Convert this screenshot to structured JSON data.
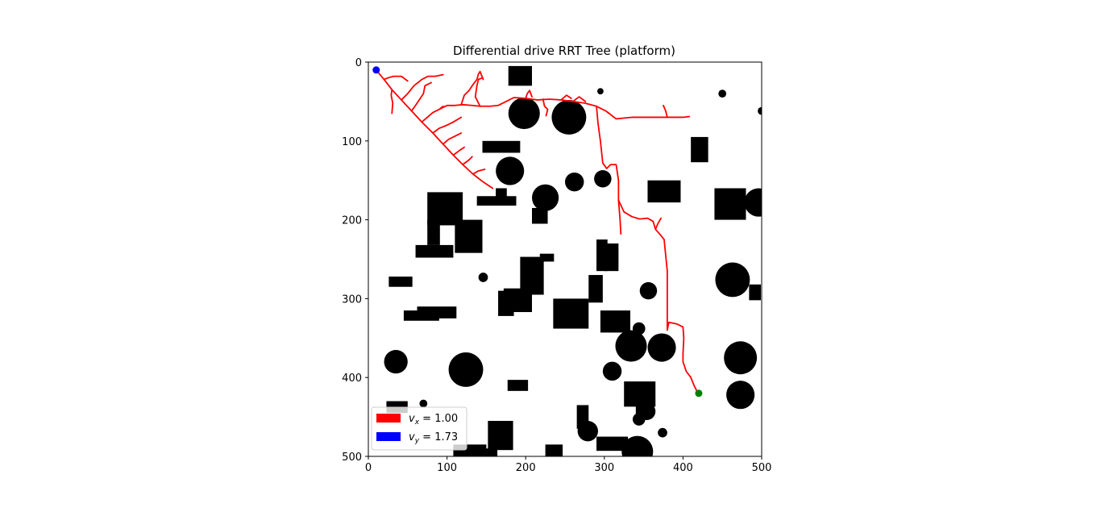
{
  "chart_data": {
    "type": "scatter",
    "title": "Differential drive RRT Tree (platform)",
    "xlabel": "",
    "ylabel": "",
    "xlim": [
      0,
      500
    ],
    "ylim": [
      500,
      0
    ],
    "y_inverted": true,
    "x_ticks": [
      "0",
      "100",
      "200",
      "300",
      "400",
      "500"
    ],
    "y_ticks": [
      "0",
      "100",
      "200",
      "300",
      "400",
      "500"
    ],
    "x_tick_values": [
      0,
      100,
      200,
      300,
      400,
      500
    ],
    "y_tick_values": [
      0,
      100,
      200,
      300,
      400,
      500
    ],
    "grid": false,
    "legend": {
      "placement": "lower-left",
      "entries": [
        {
          "label_var": "v",
          "label_sub": "x",
          "label_rest": " = 1.00",
          "color": "#ff0000"
        },
        {
          "label_var": "v",
          "label_sub": "y",
          "label_rest": " = 1.73",
          "color": "#0000ff"
        }
      ]
    },
    "start": {
      "x": 10,
      "y": 10,
      "color": "#0000ff"
    },
    "goal": {
      "x": 420,
      "y": 420,
      "color": "#008000"
    },
    "tree_color": "#ff0000",
    "obstacle_color": "#000000",
    "obstacles_rect": [
      [
        178,
        5,
        30,
        25
      ],
      [
        145,
        100,
        48,
        15
      ],
      [
        410,
        95,
        22,
        32
      ],
      [
        355,
        150,
        42,
        28
      ],
      [
        440,
        160,
        40,
        40
      ],
      [
        75,
        165,
        45,
        42
      ],
      [
        138,
        170,
        50,
        12
      ],
      [
        162,
        160,
        14,
        22
      ],
      [
        208,
        185,
        20,
        20
      ],
      [
        110,
        200,
        35,
        42
      ],
      [
        75,
        200,
        16,
        32
      ],
      [
        60,
        232,
        48,
        16
      ],
      [
        290,
        225,
        14,
        40
      ],
      [
        300,
        230,
        18,
        35
      ],
      [
        193,
        247,
        30,
        48
      ],
      [
        218,
        243,
        18,
        10
      ],
      [
        26,
        272,
        30,
        13
      ],
      [
        280,
        270,
        18,
        35
      ],
      [
        484,
        282,
        15,
        20
      ],
      [
        165,
        290,
        20,
        32
      ],
      [
        172,
        287,
        36,
        30
      ],
      [
        235,
        300,
        45,
        38
      ],
      [
        62,
        310,
        50,
        15
      ],
      [
        45,
        315,
        45,
        13
      ],
      [
        295,
        315,
        38,
        28
      ],
      [
        177,
        403,
        26,
        14
      ],
      [
        23,
        430,
        27,
        15
      ],
      [
        265,
        435,
        15,
        30
      ],
      [
        325,
        405,
        40,
        32
      ],
      [
        340,
        408,
        20,
        40
      ],
      [
        152,
        455,
        32,
        37
      ],
      [
        290,
        475,
        40,
        18
      ],
      [
        108,
        485,
        42,
        16
      ],
      [
        225,
        485,
        22,
        16
      ],
      [
        148,
        490,
        16,
        12
      ]
    ],
    "obstacles_circle": [
      [
        198,
        65,
        20
      ],
      [
        255,
        70,
        22
      ],
      [
        295,
        37,
        4
      ],
      [
        450,
        40,
        5
      ],
      [
        500,
        62,
        5
      ],
      [
        180,
        138,
        18
      ],
      [
        262,
        152,
        12
      ],
      [
        298,
        148,
        11
      ],
      [
        225,
        172,
        17
      ],
      [
        496,
        178,
        18
      ],
      [
        146,
        273,
        6
      ],
      [
        463,
        276,
        22
      ],
      [
        356,
        290,
        11
      ],
      [
        344,
        338,
        8
      ],
      [
        334,
        360,
        20
      ],
      [
        373,
        362,
        18
      ],
      [
        473,
        375,
        21
      ],
      [
        35,
        380,
        15
      ],
      [
        124,
        390,
        22
      ],
      [
        310,
        392,
        12
      ],
      [
        473,
        422,
        18
      ],
      [
        70,
        433,
        5
      ],
      [
        354,
        443,
        11
      ],
      [
        344,
        453,
        8
      ],
      [
        279,
        468,
        13
      ],
      [
        374,
        470,
        6
      ],
      [
        342,
        494,
        20
      ]
    ],
    "tree_paths": [
      [
        [
          10,
          10
        ],
        [
          20,
          22
        ],
        [
          30,
          35
        ],
        [
          42,
          48
        ],
        [
          55,
          62
        ],
        [
          68,
          76
        ],
        [
          82,
          90
        ],
        [
          95,
          104
        ],
        [
          108,
          118
        ],
        [
          120,
          130
        ],
        [
          133,
          142
        ],
        [
          146,
          152
        ],
        [
          158,
          160
        ]
      ],
      [
        [
          20,
          22
        ],
        [
          25,
          20
        ],
        [
          32,
          18
        ],
        [
          42,
          18
        ],
        [
          50,
          24
        ]
      ],
      [
        [
          30,
          35
        ],
        [
          29,
          42
        ],
        [
          31,
          52
        ],
        [
          30,
          65
        ]
      ],
      [
        [
          42,
          48
        ],
        [
          50,
          40
        ],
        [
          58,
          30
        ],
        [
          68,
          22
        ],
        [
          76,
          18
        ],
        [
          85,
          18
        ],
        [
          95,
          16
        ]
      ],
      [
        [
          55,
          62
        ],
        [
          62,
          52
        ],
        [
          70,
          40
        ],
        [
          72,
          30
        ],
        [
          80,
          26
        ]
      ],
      [
        [
          68,
          76
        ],
        [
          75,
          70
        ],
        [
          82,
          64
        ],
        [
          90,
          60
        ],
        [
          95,
          56
        ]
      ],
      [
        [
          82,
          90
        ],
        [
          90,
          84
        ],
        [
          100,
          80
        ],
        [
          108,
          76
        ],
        [
          118,
          70
        ]
      ],
      [
        [
          95,
          104
        ],
        [
          102,
          98
        ],
        [
          110,
          94
        ],
        [
          118,
          90
        ]
      ],
      [
        [
          108,
          118
        ],
        [
          116,
          112
        ],
        [
          122,
          108
        ]
      ],
      [
        [
          120,
          130
        ],
        [
          128,
          124
        ],
        [
          132,
          120
        ]
      ],
      [
        [
          133,
          142
        ],
        [
          140,
          138
        ],
        [
          148,
          136
        ]
      ],
      [
        [
          90,
          60
        ],
        [
          100,
          55
        ],
        [
          110,
          55
        ],
        [
          120,
          54
        ],
        [
          132,
          55
        ],
        [
          142,
          56
        ],
        [
          155,
          56
        ],
        [
          165,
          55
        ],
        [
          175,
          50
        ],
        [
          185,
          45
        ],
        [
          200,
          46
        ],
        [
          215,
          48
        ],
        [
          230,
          47
        ],
        [
          245,
          48
        ],
        [
          260,
          50
        ],
        [
          275,
          52
        ],
        [
          290,
          56
        ],
        [
          302,
          62
        ],
        [
          315,
          72
        ],
        [
          335,
          70
        ],
        [
          350,
          70
        ],
        [
          365,
          70
        ],
        [
          380,
          70
        ],
        [
          400,
          70
        ],
        [
          408,
          69
        ]
      ],
      [
        [
          118,
          54
        ],
        [
          122,
          42
        ],
        [
          128,
          36
        ],
        [
          132,
          30
        ],
        [
          138,
          22
        ],
        [
          140,
          15
        ],
        [
          142,
          12
        ],
        [
          146,
          22
        ]
      ],
      [
        [
          142,
          56
        ],
        [
          136,
          44
        ],
        [
          138,
          30
        ],
        [
          140,
          22
        ],
        [
          145,
          20
        ]
      ],
      [
        [
          200,
          46
        ],
        [
          202,
          40
        ],
        [
          205,
          36
        ],
        [
          208,
          44
        ]
      ],
      [
        [
          222,
          47
        ],
        [
          224,
          56
        ],
        [
          228,
          60
        ],
        [
          226,
          68
        ]
      ],
      [
        [
          245,
          48
        ],
        [
          252,
          42
        ],
        [
          258,
          46
        ]
      ],
      [
        [
          260,
          50
        ],
        [
          268,
          44
        ],
        [
          276,
          50
        ]
      ],
      [
        [
          380,
          70
        ],
        [
          378,
          62
        ],
        [
          375,
          55
        ]
      ],
      [
        [
          290,
          56
        ],
        [
          292,
          78
        ],
        [
          295,
          100
        ],
        [
          298,
          128
        ],
        [
          303,
          135
        ],
        [
          308,
          130
        ],
        [
          315,
          130
        ],
        [
          318,
          150
        ],
        [
          318,
          175
        ],
        [
          320,
          200
        ],
        [
          321,
          218
        ]
      ],
      [
        [
          318,
          175
        ],
        [
          325,
          190
        ],
        [
          335,
          196
        ],
        [
          345,
          199
        ],
        [
          355,
          198
        ],
        [
          362,
          202
        ],
        [
          365,
          212
        ],
        [
          372,
          220
        ],
        [
          376,
          225
        ],
        [
          378,
          245
        ],
        [
          380,
          265
        ],
        [
          380,
          290
        ],
        [
          380,
          315
        ],
        [
          380,
          340
        ],
        [
          382,
          330
        ],
        [
          392,
          332
        ],
        [
          400,
          336
        ],
        [
          401,
          350
        ],
        [
          400,
          370
        ],
        [
          400,
          380
        ],
        [
          404,
          392
        ],
        [
          410,
          400
        ],
        [
          414,
          410
        ],
        [
          418,
          418
        ]
      ],
      [
        [
          365,
          212
        ],
        [
          368,
          205
        ],
        [
          372,
          198
        ]
      ]
    ]
  }
}
